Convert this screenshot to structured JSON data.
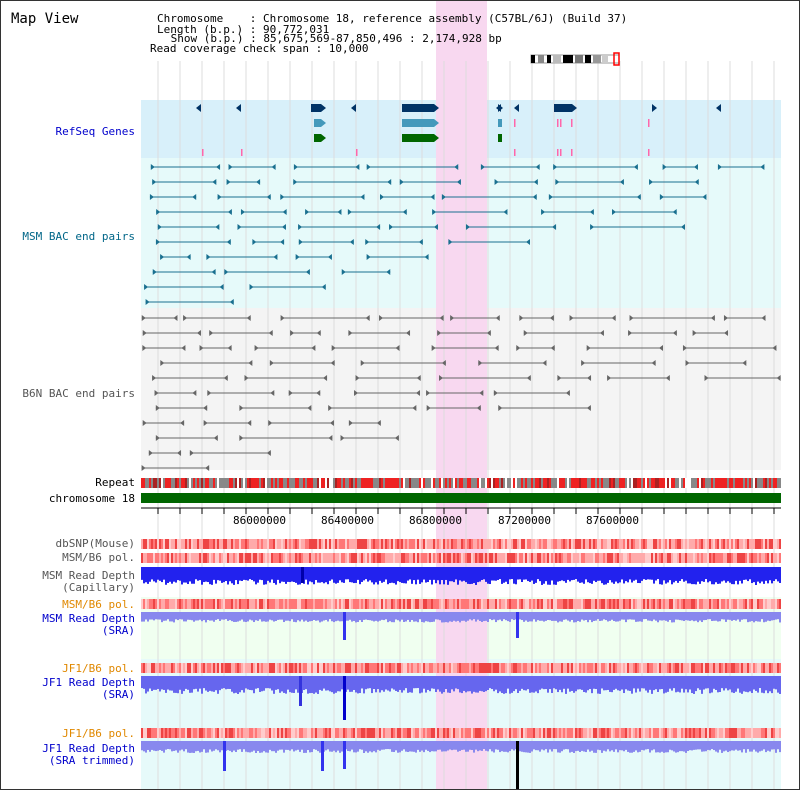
{
  "app": {
    "title": "Map View"
  },
  "header": {
    "chromosome_line": "Chromosome    : Chromosome 18, reference assembly (C57BL/6J) (Build 37)",
    "length_line": "Length (b.p.) : 90,772,031",
    "show_line": " Show (b.p.) : 85,675,569-87,850,496 : 2,174,928 bp",
    "coverage_line": "Read coverage check span : 10,000"
  },
  "tracks": {
    "refseq": "RefSeq Genes",
    "msm_bac": "MSM BAC end pairs",
    "b6n_bac": "B6N BAC end pairs",
    "repeat": "Repeat",
    "chromosome": "chromosome 18",
    "dbsnp": "dbSNP(Mouse)",
    "msm_b6_pol": "MSM/B6 pol.",
    "msm_depth_cap_1": "MSM Read Depth",
    "msm_depth_cap_2": "(Capillary)",
    "msm_b6_pol_2": "MSM/B6 pol.",
    "msm_depth_sra_1": "MSM Read Depth",
    "msm_depth_sra_2": "(SRA)",
    "jf1_b6_pol": "JF1/B6 pol.",
    "jf1_depth_sra_1": "JF1 Read Depth",
    "jf1_depth_sra_2": "(SRA)",
    "jf1_b6_pol_2": "JF1/B6 pol.",
    "jf1_depth_trim_1": "JF1 Read Depth",
    "jf1_depth_trim_2": "(SRA trimmed)"
  },
  "axis": {
    "ticks": [
      "86000000",
      "86400000",
      "86800000",
      "87200000",
      "87600000"
    ]
  },
  "colors": {
    "label_blue": "#0000cc",
    "label_teal": "#006688",
    "label_gray": "#555555",
    "label_orange": "#e08800",
    "highlight": "#f8d8f0",
    "chromosome_bar": "#006600"
  }
}
